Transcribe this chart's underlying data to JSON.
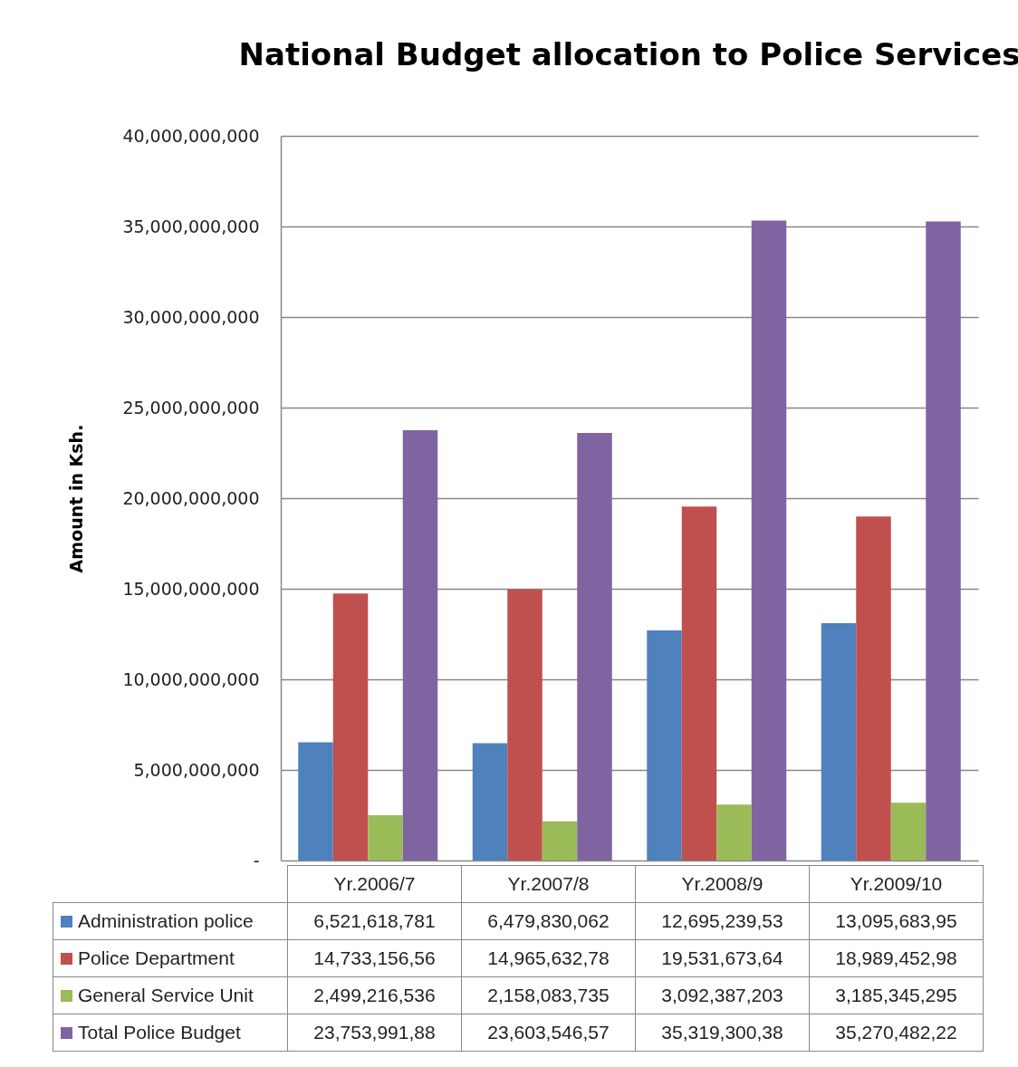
{
  "chart_data": {
    "type": "bar",
    "title": "National Budget allocation to Police Services",
    "ylabel": "Amount in Ksh.",
    "categories": [
      "Yr.2006/7",
      "Yr.2007/8",
      "Yr.2008/9",
      "Yr.2009/10"
    ],
    "series": [
      {
        "name": "Administration police",
        "color": "#4f81bd",
        "values": [
          6521618781,
          6479830062,
          12695239530,
          13095683950
        ],
        "value_labels": [
          "6,521,618,781",
          "6,479,830,062",
          "12,695,239,53",
          "13,095,683,95"
        ]
      },
      {
        "name": "Police Department",
        "color": "#c0504d",
        "values": [
          14733156560,
          14965632780,
          19531673640,
          18989452980
        ],
        "value_labels": [
          "14,733,156,56",
          "14,965,632,78",
          "19,531,673,64",
          "18,989,452,98"
        ]
      },
      {
        "name": "General Service Unit",
        "color": "#9bbb59",
        "values": [
          2499216536,
          2158083735,
          3092387203,
          3185345295
        ],
        "value_labels": [
          "2,499,216,536",
          "2,158,083,735",
          "3,092,387,203",
          "3,185,345,295"
        ]
      },
      {
        "name": "Total Police Budget",
        "color": "#8064a2",
        "values": [
          23753991880,
          23603546570,
          35319300380,
          35270482220
        ],
        "value_labels": [
          "23,753,991,88",
          "23,603,546,57",
          "35,319,300,38",
          "35,270,482,22"
        ]
      }
    ],
    "ylim": [
      0,
      40000000000
    ],
    "yticks": [
      {
        "value": 0,
        "label": "-"
      },
      {
        "value": 5000000000,
        "label": "5,000,000,000"
      },
      {
        "value": 10000000000,
        "label": "10,000,000,000"
      },
      {
        "value": 15000000000,
        "label": "15,000,000,000"
      },
      {
        "value": 20000000000,
        "label": "20,000,000,000"
      },
      {
        "value": 25000000000,
        "label": "25,000,000,000"
      },
      {
        "value": 30000000000,
        "label": "30,000,000,000"
      },
      {
        "value": 35000000000,
        "label": "35,000,000,000"
      },
      {
        "value": 40000000000,
        "label": "40,000,000,000"
      }
    ],
    "grid": "y",
    "legend": "bottom left"
  }
}
